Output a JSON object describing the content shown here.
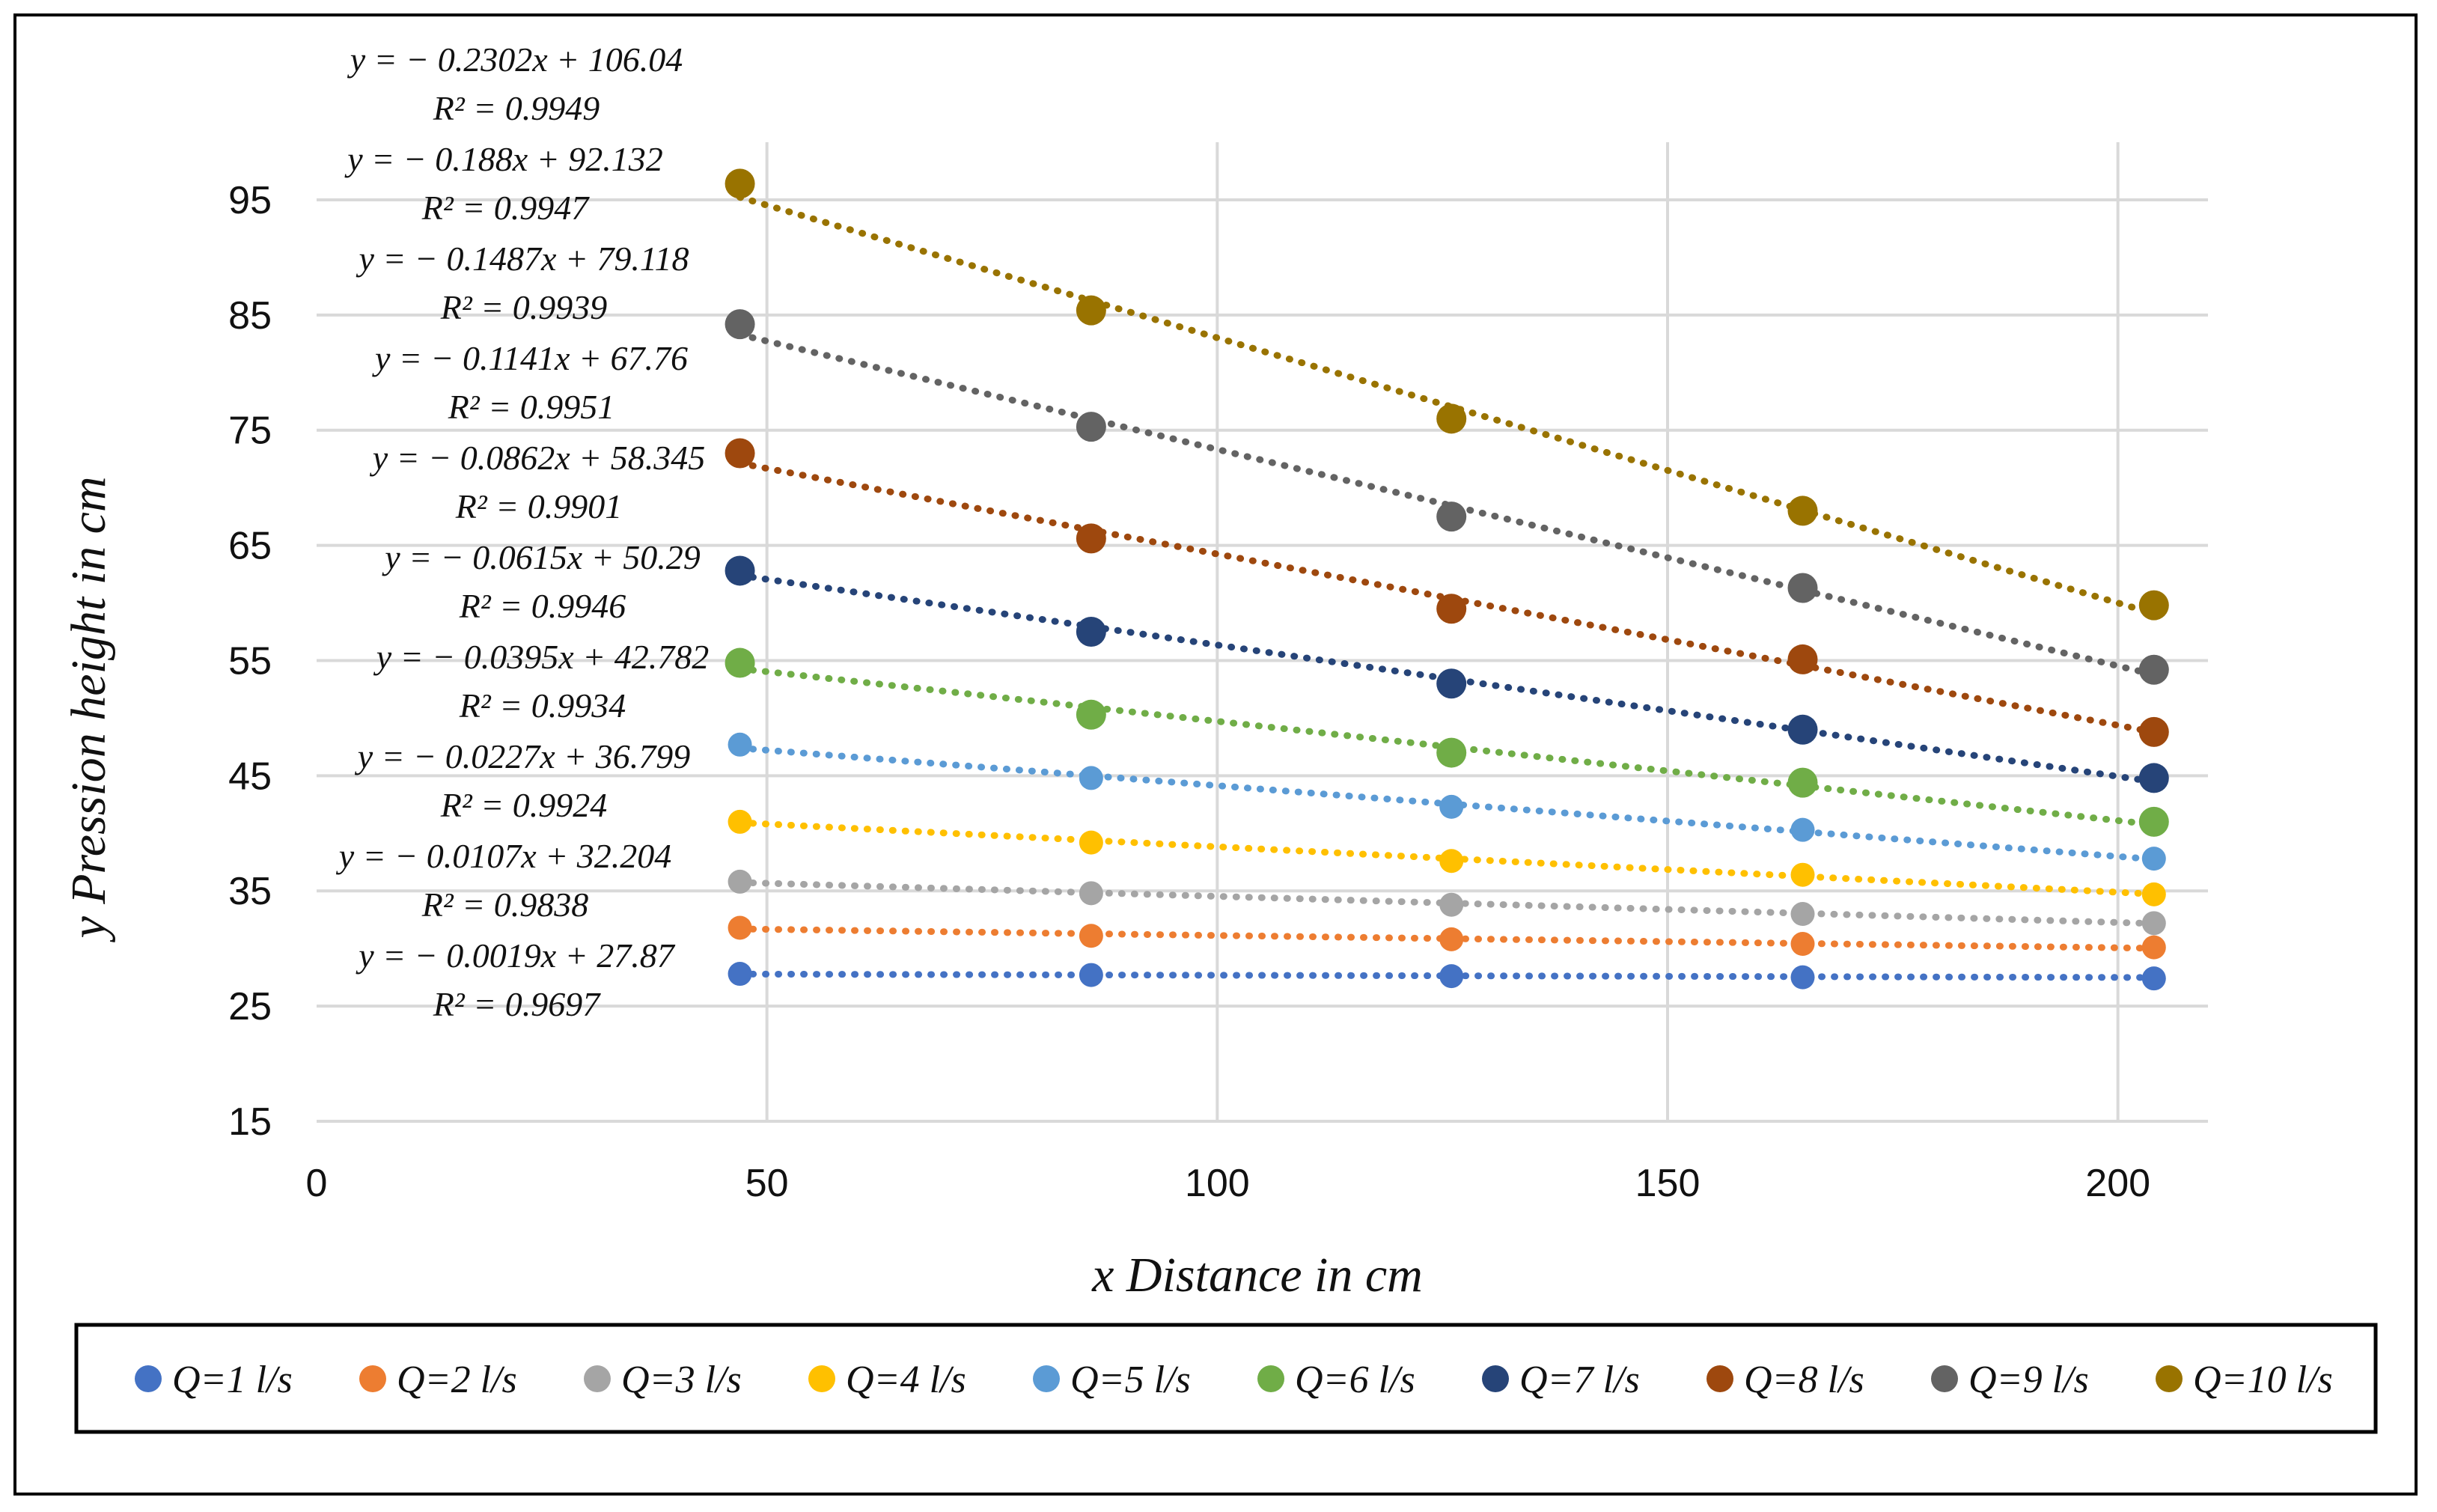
{
  "chart_data": {
    "type": "scatter",
    "xlabel": "x Distance in cm",
    "ylabel": "y Pression height in cm",
    "xlim": [
      0,
      210
    ],
    "ylim": [
      15,
      100
    ],
    "xticks": [
      "0",
      "50",
      "100",
      "150",
      "200"
    ],
    "yticks": [
      "15",
      "25",
      "35",
      "45",
      "55",
      "65",
      "75",
      "85",
      "95"
    ],
    "xtick_values": [
      0,
      50,
      100,
      150,
      200
    ],
    "ytick_values": [
      15,
      25,
      35,
      45,
      55,
      65,
      75,
      85,
      95
    ],
    "grid": true,
    "legend_position": "bottom",
    "x": [
      47,
      86,
      126,
      165,
      204
    ],
    "series": [
      {
        "name": "Q=1 l/s",
        "color": "#4472C4",
        "values": [
          27.8,
          27.7,
          27.6,
          27.5,
          27.4
        ],
        "trend": {
          "slope": -0.0019,
          "intercept": 27.87
        },
        "equation": "y = − 0.0019x + 27.87",
        "r2": "R² = 0.9697"
      },
      {
        "name": "Q=2 l/s",
        "color": "#ED7D31",
        "values": [
          31.8,
          31.1,
          30.8,
          30.4,
          30.1
        ],
        "trend": {
          "slope": -0.0107,
          "intercept": 32.204
        },
        "equation": "y = − 0.0107x + 32.204",
        "r2": "R² = 0.9838"
      },
      {
        "name": "Q=3 l/s",
        "color": "#A5A5A5",
        "values": [
          35.8,
          34.8,
          33.8,
          33.0,
          32.2
        ],
        "trend": {
          "slope": -0.0227,
          "intercept": 36.799
        },
        "equation": "y = − 0.0227x + 36.799",
        "r2": "R² = 0.9924"
      },
      {
        "name": "Q=4 l/s",
        "color": "#FFC000",
        "values": [
          41.0,
          39.2,
          37.6,
          36.4,
          34.7
        ],
        "trend": {
          "slope": -0.0395,
          "intercept": 42.782
        },
        "equation": "y = − 0.0395x + 42.782",
        "r2": "R² = 0.9934"
      },
      {
        "name": "Q=5 l/s",
        "color": "#5B9BD5",
        "values": [
          47.7,
          44.8,
          42.3,
          40.3,
          37.8
        ],
        "trend": {
          "slope": -0.0615,
          "intercept": 50.29
        },
        "equation": "y = − 0.0615x + 50.29",
        "r2": "R² = 0.9946"
      },
      {
        "name": "Q=6 l/s",
        "color": "#70AD47",
        "values": [
          54.8,
          50.3,
          47.0,
          44.4,
          41.0
        ],
        "trend": {
          "slope": -0.0862,
          "intercept": 58.345
        },
        "equation": "y = − 0.0862x + 58.345",
        "r2": "R² = 0.9901"
      },
      {
        "name": "Q=7 l/s",
        "color": "#264478",
        "values": [
          62.8,
          57.5,
          53.0,
          49.0,
          44.8
        ],
        "trend": {
          "slope": -0.1141,
          "intercept": 67.76
        },
        "equation": "y = − 0.1141x + 67.76",
        "r2": "R² = 0.9951"
      },
      {
        "name": "Q=8 l/s",
        "color": "#9E480E",
        "values": [
          73.0,
          65.6,
          59.5,
          55.1,
          48.8
        ],
        "trend": {
          "slope": -0.1487,
          "intercept": 79.118
        },
        "equation": "y = − 0.1487x + 79.118",
        "r2": "R² = 0.9939"
      },
      {
        "name": "Q=9 l/s",
        "color": "#636363",
        "values": [
          84.2,
          75.3,
          67.5,
          61.3,
          54.2
        ],
        "trend": {
          "slope": -0.188,
          "intercept": 92.132
        },
        "equation": "y = − 0.188x + 92.132",
        "r2": "R² = 0.9947"
      },
      {
        "name": "Q=10 l/s",
        "color": "#997300",
        "values": [
          96.4,
          85.4,
          76.0,
          68.0,
          59.8
        ],
        "trend": {
          "slope": -0.2302,
          "intercept": 106.04
        },
        "equation": "y = − 0.2302x + 106.04",
        "r2": "R² = 0.9949"
      }
    ]
  }
}
